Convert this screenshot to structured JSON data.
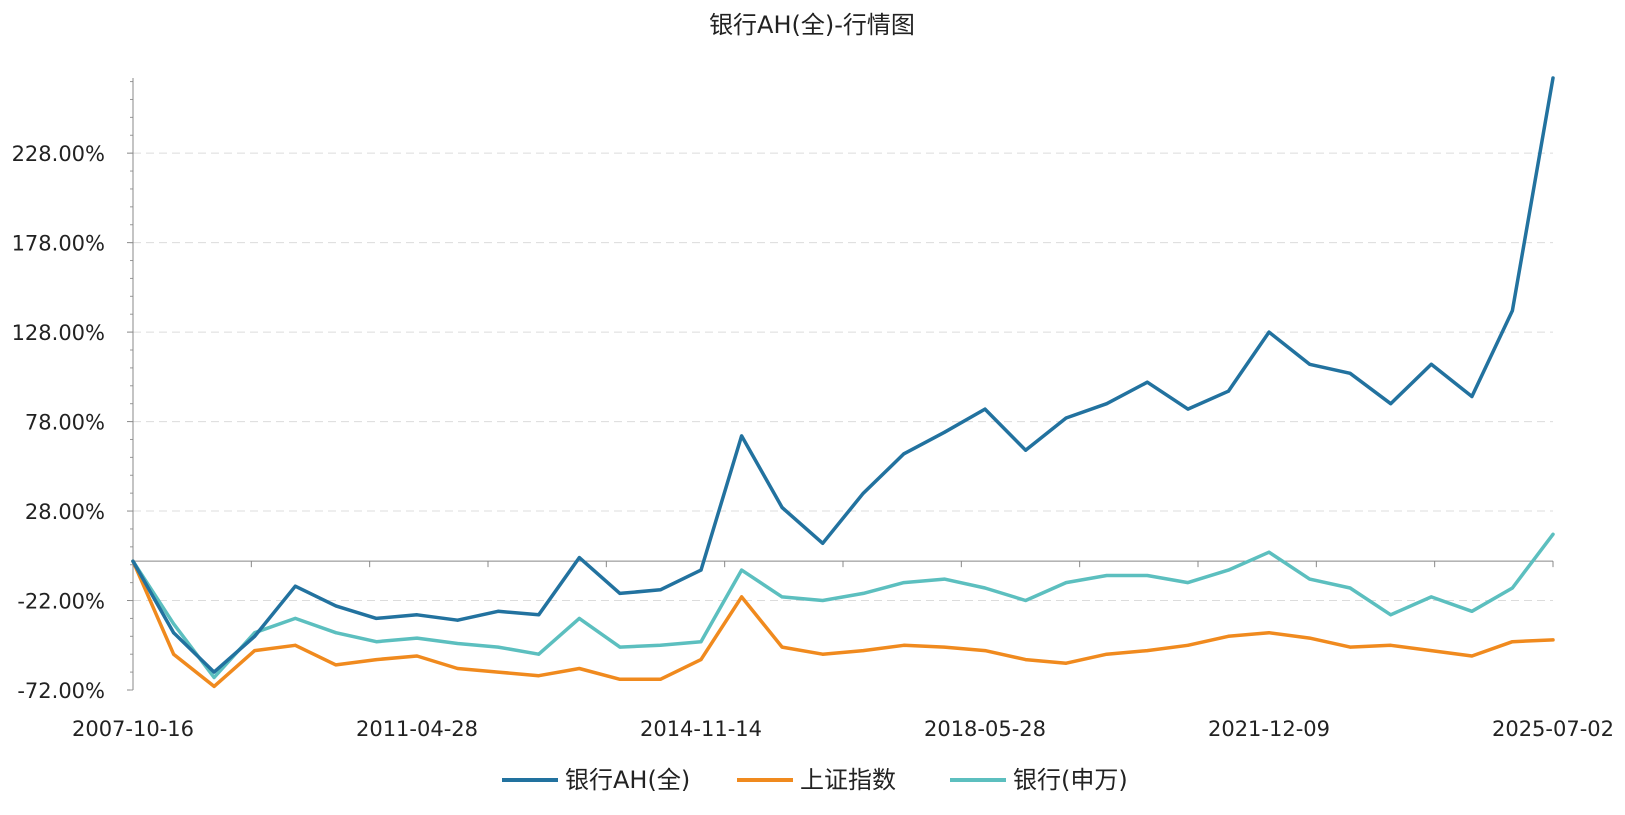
{
  "chart_data": {
    "type": "line",
    "title": "银行AH(全)-行情图",
    "xlabel": "",
    "ylabel": "",
    "grid": true,
    "legend_position": "bottom-center",
    "ylim": [
      -72,
      270
    ],
    "y_ticks": [
      {
        "value": -72,
        "label": "-72.00%"
      },
      {
        "value": -22,
        "label": "-22.00%"
      },
      {
        "value": 28,
        "label": "28.00%"
      },
      {
        "value": 78,
        "label": "78.00%"
      },
      {
        "value": 128,
        "label": "128.00%"
      },
      {
        "value": 178,
        "label": "178.00%"
      },
      {
        "value": 228,
        "label": "228.00%"
      }
    ],
    "x_tick_labels": [
      "2007-10-16",
      "2011-04-28",
      "2014-11-14",
      "2018-05-28",
      "2021-12-09",
      "2025-07-02"
    ],
    "x": [
      "2007-10-16",
      "2008-04",
      "2008-10",
      "2009-04",
      "2009-10",
      "2010-04",
      "2010-10",
      "2011-04-28",
      "2011-10",
      "2012-04",
      "2012-10",
      "2013-04",
      "2013-10",
      "2014-04",
      "2014-11-14",
      "2015-04",
      "2015-10",
      "2016-04",
      "2016-10",
      "2017-04",
      "2017-10",
      "2018-05-28",
      "2018-10",
      "2019-04",
      "2019-10",
      "2020-04",
      "2020-10",
      "2021-04",
      "2021-12-09",
      "2022-04",
      "2022-10",
      "2023-04",
      "2023-10",
      "2024-04",
      "2024-10",
      "2025-07-02"
    ],
    "series": [
      {
        "name": "银行AH(全)",
        "color": "#22729f",
        "values": [
          0,
          -40,
          -62,
          -42,
          -14,
          -25,
          -32,
          -30,
          -33,
          -28,
          -30,
          2,
          -18,
          -16,
          -5,
          70,
          30,
          10,
          38,
          60,
          72,
          85,
          62,
          80,
          88,
          100,
          85,
          95,
          128,
          110,
          105,
          88,
          110,
          92,
          140,
          270
        ]
      },
      {
        "name": "上证指数",
        "color": "#f08a1e",
        "values": [
          0,
          -52,
          -70,
          -50,
          -47,
          -58,
          -55,
          -53,
          -60,
          -62,
          -64,
          -60,
          -66,
          -66,
          -55,
          -20,
          -48,
          -52,
          -50,
          -47,
          -48,
          -50,
          -55,
          -57,
          -52,
          -50,
          -47,
          -42,
          -40,
          -43,
          -48,
          -47,
          -50,
          -53,
          -45,
          -44
        ]
      },
      {
        "name": "银行(申万)",
        "color": "#5cbfbf",
        "values": [
          0,
          -35,
          -65,
          -40,
          -32,
          -40,
          -45,
          -43,
          -46,
          -48,
          -52,
          -32,
          -48,
          -47,
          -45,
          -5,
          -20,
          -22,
          -18,
          -12,
          -10,
          -15,
          -22,
          -12,
          -8,
          -8,
          -12,
          -5,
          5,
          -10,
          -15,
          -30,
          -20,
          -28,
          -15,
          15
        ]
      }
    ]
  }
}
